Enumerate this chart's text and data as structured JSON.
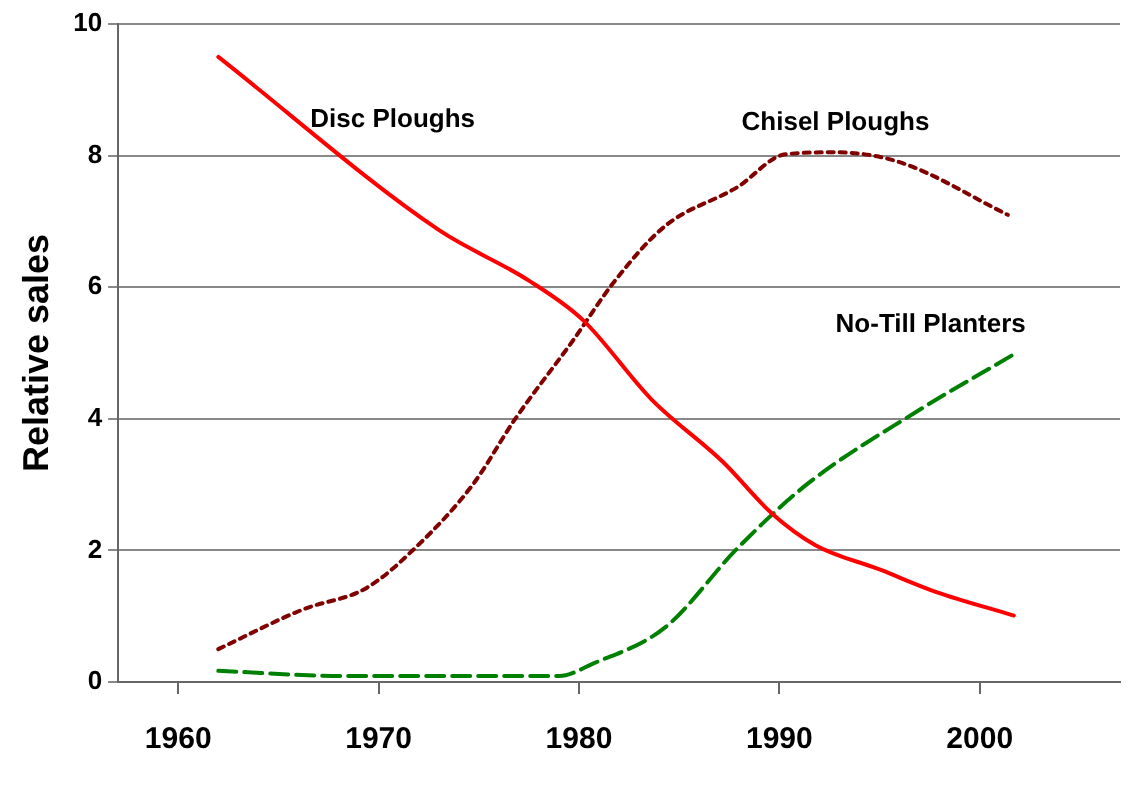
{
  "chart_data": {
    "type": "line",
    "ylabel": "Relative sales",
    "xlim": [
      1957,
      2007
    ],
    "xticks": [
      1960,
      1970,
      1980,
      1990,
      2000
    ],
    "ylim": [
      0,
      10
    ],
    "yticks": [
      0,
      2,
      4,
      6,
      8,
      10
    ],
    "grid": "y",
    "legend": false,
    "marker": "none",
    "series": [
      {
        "name": "Disc Ploughs",
        "color": "#ff0000",
        "line_style": "solid",
        "x": [
          1962,
          1973,
          1977.5,
          1980.2,
          1983.6,
          1987.2,
          1989.6,
          1991.8,
          1995,
          1997.8,
          2001.7
        ],
        "values": [
          9.5,
          6.87,
          6.1,
          5.5,
          4.3,
          3.34,
          2.57,
          2.08,
          1.71,
          1.37,
          1.01
        ]
      },
      {
        "name": "Chisel Ploughs",
        "color": "#800000",
        "line_style": "dotted",
        "x": [
          1962,
          1966.2,
          1969.4,
          1971.8,
          1974.7,
          1976.8,
          1979.7,
          1981.8,
          1984.3,
          1987.9,
          1990.3,
          1992.8,
          1996,
          2001.4
        ],
        "values": [
          0.5,
          1.1,
          1.43,
          2.03,
          3.0,
          3.99,
          5.19,
          6.1,
          6.93,
          7.52,
          8.02,
          8.05,
          7.9,
          7.1
        ]
      },
      {
        "name": "No-Till Planters",
        "color": "#008000",
        "line_style": "dashed",
        "x": [
          1962,
          1968.3,
          1979,
          1980.7,
          1984.3,
          1987.9,
          1991.4,
          1996.8,
          2001.7
        ],
        "values": [
          0.17,
          0.09,
          0.09,
          0.28,
          0.83,
          2.03,
          3.01,
          4.1,
          4.98
        ]
      }
    ]
  }
}
